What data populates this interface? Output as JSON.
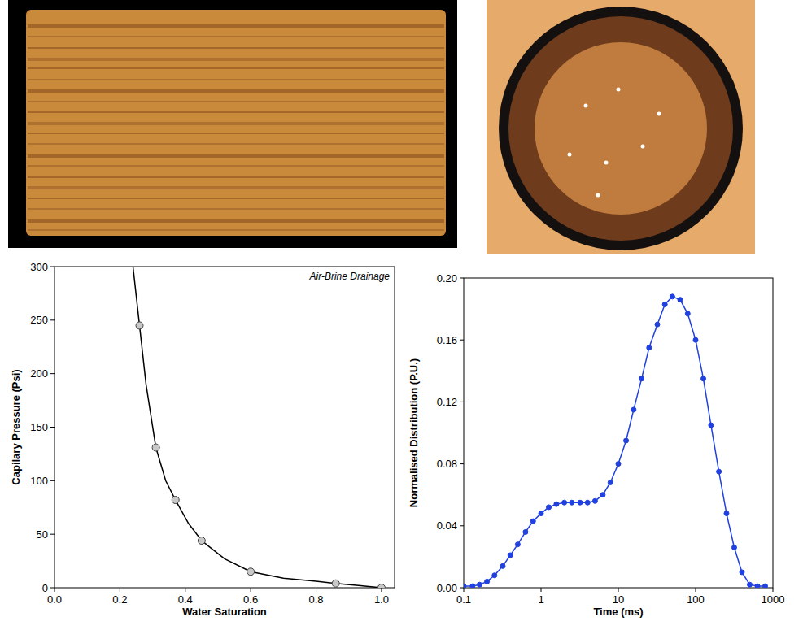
{
  "chart_data": [
    {
      "type": "scatter",
      "annotation": "Air-Brine Drainage",
      "x_label": "Water Saturation",
      "y_label": "Capilary Pressure (Psi)",
      "xlim": [
        0,
        1.04
      ],
      "ylim": [
        0,
        300
      ],
      "xticks": [
        {
          "value": 0,
          "label": "0.0"
        },
        {
          "value": 0.2,
          "label": "0.2"
        },
        {
          "value": 0.4,
          "label": "0.4"
        },
        {
          "value": 0.6,
          "label": "0.6"
        },
        {
          "value": 0.8,
          "label": "0.8"
        },
        {
          "value": 1,
          "label": "1.0"
        }
      ],
      "yticks": [
        0,
        50,
        100,
        150,
        200,
        250,
        300
      ],
      "grid": false,
      "series": [
        {
          "type": "line",
          "color": "#000000",
          "line_style": "solid",
          "x": [
            0.24,
            0.26,
            0.28,
            0.31,
            0.34,
            0.37,
            0.41,
            0.45,
            0.52,
            0.6,
            0.7,
            0.8,
            0.86,
            0.93,
            1.0
          ],
          "values": [
            300,
            245,
            190,
            131,
            100,
            82,
            60,
            44,
            27,
            15,
            9,
            6,
            4,
            2,
            0
          ]
        },
        {
          "type": "scatter",
          "color": "#c8c8c8",
          "marker": "circle",
          "x": [
            1.0,
            0.86,
            0.6,
            0.45,
            0.37,
            0.31,
            0.26
          ],
          "values": [
            0,
            4,
            15,
            44,
            82,
            131,
            245
          ]
        }
      ]
    },
    {
      "type": "line",
      "log": "x",
      "x_label": "Time (ms)",
      "y_label": "Normalised Distribution (P.U.)",
      "xlim": [
        0.1,
        1000
      ],
      "ylim": [
        0,
        0.2
      ],
      "xticks": [
        0.1,
        1,
        10,
        100,
        1000
      ],
      "yticks": [
        {
          "value": 0,
          "label": "0.00"
        },
        {
          "value": 0.04,
          "label": "0.04"
        },
        {
          "value": 0.08,
          "label": "0.08"
        },
        {
          "value": 0.12,
          "label": "0.12"
        },
        {
          "value": 0.16,
          "label": "0.16"
        },
        {
          "value": 0.2,
          "label": "0.20"
        }
      ],
      "grid": false,
      "series": [
        {
          "color": "#2040e0",
          "marker": "circle",
          "line_style": "solid",
          "x": [
            0.1,
            0.13,
            0.16,
            0.2,
            0.25,
            0.32,
            0.4,
            0.5,
            0.63,
            0.79,
            1,
            1.26,
            1.58,
            2,
            2.5,
            3.2,
            4,
            5,
            6.3,
            7.9,
            10,
            12.6,
            15.8,
            20,
            25,
            32,
            40,
            50,
            63,
            79,
            100,
            126,
            158,
            200,
            251,
            316,
            398,
            501,
            631,
            794
          ],
          "values": [
            0.001,
            0.001,
            0.002,
            0.004,
            0.008,
            0.014,
            0.021,
            0.028,
            0.036,
            0.043,
            0.048,
            0.052,
            0.054,
            0.055,
            0.055,
            0.055,
            0.055,
            0.056,
            0.06,
            0.068,
            0.08,
            0.095,
            0.115,
            0.135,
            0.155,
            0.17,
            0.183,
            0.188,
            0.186,
            0.177,
            0.16,
            0.135,
            0.105,
            0.075,
            0.048,
            0.026,
            0.01,
            0.002,
            0.001,
            0.001
          ]
        }
      ]
    }
  ]
}
